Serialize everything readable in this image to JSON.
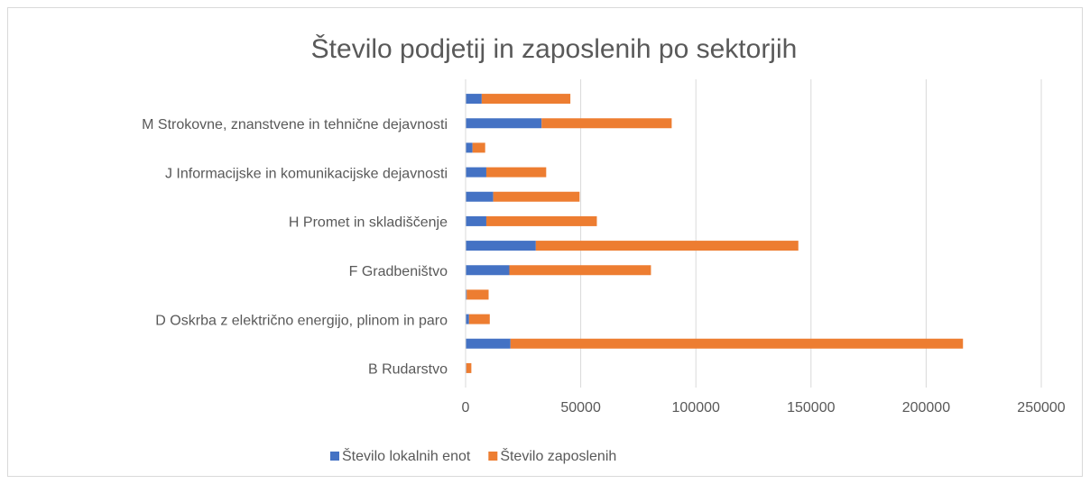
{
  "chart_data": {
    "type": "stacked_barh",
    "title": "Število podjetij in zaposlenih po sektorjih",
    "categories": [
      "B Rudarstvo",
      null,
      "D Oskrba z električno energijo, plinom in paro",
      null,
      "F Gradbeništvo",
      null,
      "H Promet in skladiščenje",
      null,
      "J Informacijske in komunikacijske dejavnosti",
      null,
      "M Strokovne, znanstvene in tehnične dejavnosti",
      null
    ],
    "series": [
      {
        "name": "Število lokalnih enot",
        "color": "#4472c4",
        "values": [
          300,
          19500,
          1500,
          500,
          19000,
          30500,
          9000,
          12000,
          9000,
          3000,
          33000,
          7000
        ]
      },
      {
        "name": "Število zaposlenih",
        "color": "#ed7d31",
        "values": [
          2200,
          196500,
          9000,
          9500,
          61500,
          114000,
          48000,
          37500,
          26000,
          5500,
          56500,
          38500
        ]
      }
    ],
    "xlim": [
      0,
      250000
    ],
    "xticks": [
      0,
      50000,
      100000,
      150000,
      200000,
      250000
    ],
    "grid": true,
    "legend": "bottom"
  }
}
